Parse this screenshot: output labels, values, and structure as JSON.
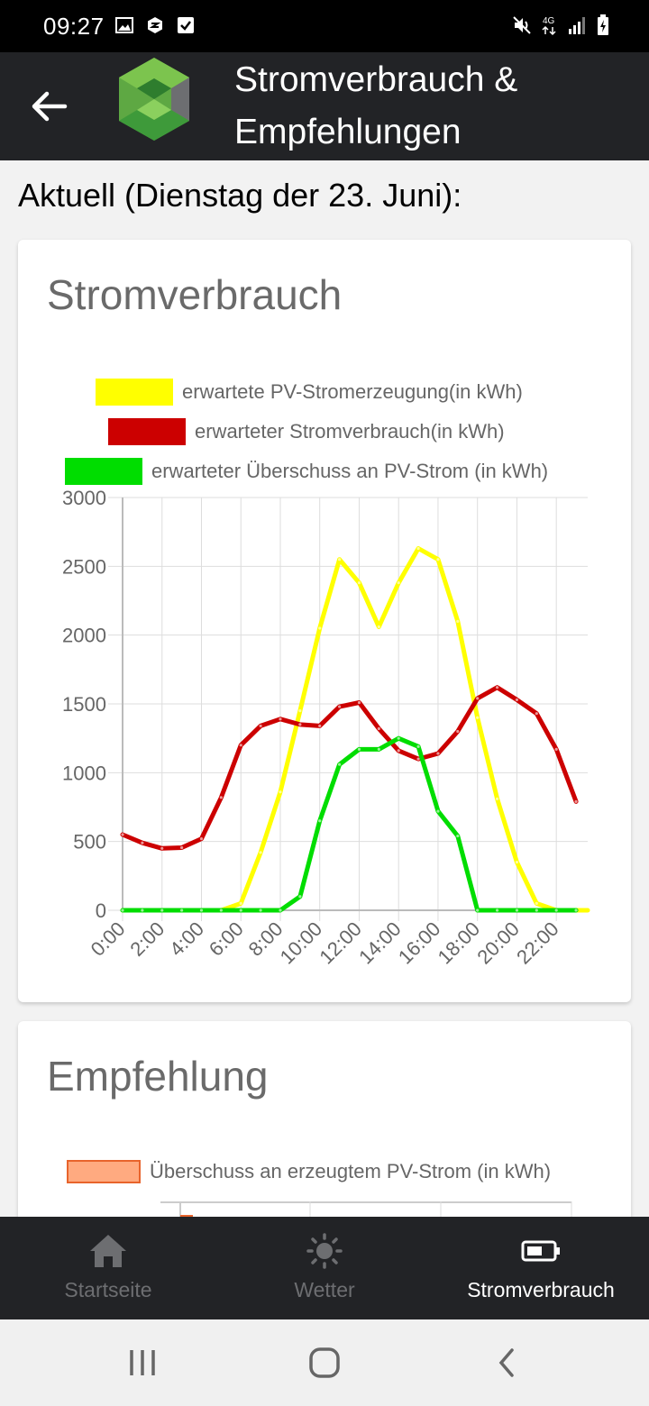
{
  "status_bar": {
    "time": "09:27",
    "left_icons": [
      "image-icon",
      "app-notification-icon",
      "checkbox-icon"
    ],
    "right_icons": [
      "mute-icon",
      "4g-icon",
      "signal-icon",
      "battery-charging-icon"
    ],
    "network_label": "4G"
  },
  "app_bar": {
    "title": "Stromverbrauch & Empfehlungen",
    "back_icon": "arrow-left-icon",
    "logo_colors": [
      "#3cb34a",
      "#6d6e71"
    ]
  },
  "subtitle": "Aktuell (Dienstag der 23. Juni):",
  "card1": {
    "title": "Stromverbrauch",
    "chart_data": {
      "type": "line",
      "title": "",
      "xlabel": "",
      "ylabel": "",
      "ylim": [
        0,
        3000
      ],
      "yticks": [
        "3000",
        "2500",
        "2000",
        "1500",
        "1000",
        "500",
        "0"
      ],
      "x": [
        "0:00",
        "1:00",
        "2:00",
        "3:00",
        "4:00",
        "5:00",
        "6:00",
        "7:00",
        "8:00",
        "9:00",
        "10:00",
        "11:00",
        "12:00",
        "13:00",
        "14:00",
        "15:00",
        "16:00",
        "17:00",
        "18:00",
        "19:00",
        "20:00",
        "21:00",
        "22:00",
        "23:00"
      ],
      "xtick_labels": [
        "0:00",
        "2:00",
        "4:00",
        "6:00",
        "8:00",
        "10:00",
        "12:00",
        "14:00",
        "16:00",
        "18:00",
        "20:00",
        "22:00"
      ],
      "grid": true,
      "legend_placement": "top",
      "series": [
        {
          "name": "erwartete PV-Stromerzeugung(in kWh)",
          "color": "#ffff00",
          "values": [
            0,
            0,
            0,
            0,
            0,
            0,
            50,
            420,
            860,
            1450,
            2050,
            2550,
            2380,
            2060,
            2380,
            2630,
            2550,
            2100,
            1400,
            810,
            350,
            50,
            0,
            0
          ]
        },
        {
          "name": "erwarteter Stromverbrauch(in kWh)",
          "color": "#cc0000",
          "values": [
            550,
            490,
            450,
            455,
            520,
            820,
            1200,
            1340,
            1390,
            1350,
            1340,
            1480,
            1510,
            1320,
            1160,
            1100,
            1140,
            1300,
            1540,
            1620,
            1530,
            1430,
            1170,
            790
          ]
        },
        {
          "name": "erwarteter Überschuss an PV-Strom (in kWh)",
          "color": "#00dd00",
          "values": [
            0,
            0,
            0,
            0,
            0,
            0,
            0,
            0,
            0,
            100,
            650,
            1060,
            1170,
            1170,
            1250,
            1190,
            720,
            540,
            0,
            0,
            0,
            0,
            0,
            0
          ]
        }
      ]
    }
  },
  "card2": {
    "title": "Empfehlung",
    "legend": {
      "label": "Überschuss an erzeugtem PV-Strom (in kWh)",
      "fill": "#ffaa80",
      "stroke": "#e8642c"
    }
  },
  "bottom_nav": {
    "items": [
      {
        "label": "Startseite",
        "icon": "home-icon",
        "active": false
      },
      {
        "label": "Wetter",
        "icon": "sun-icon",
        "active": false
      },
      {
        "label": "Stromverbrauch",
        "icon": "battery-icon",
        "active": true
      }
    ],
    "active_color": "#ffffff",
    "inactive_color": "#6d6e71"
  },
  "system_nav": {
    "icons": [
      "recent-apps-icon",
      "home-circle-icon",
      "back-chevron-icon"
    ]
  }
}
